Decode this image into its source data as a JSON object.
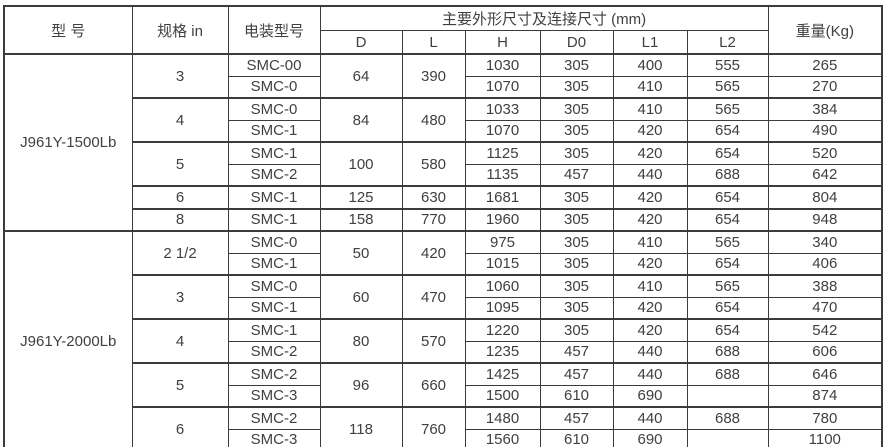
{
  "colors": {
    "border": "#3b3b3b",
    "text": "#404040",
    "background": "#ffffff"
  },
  "table": {
    "header": {
      "model": "型 号",
      "spec": "规格 in",
      "actuator": "电装型号",
      "dims_group": "主要外形尺寸及连接尺寸 (mm)",
      "weight": "重量(Kg)",
      "dims": [
        "D",
        "L",
        "H",
        "D0",
        "L1",
        "L2"
      ]
    },
    "sections": [
      {
        "model": "J961Y-1500Lb",
        "groups": [
          {
            "spec": "3",
            "d": "64",
            "l": "390",
            "rows": [
              {
                "actuator": "SMC-00",
                "h": "1030",
                "d0": "305",
                "l1": "400",
                "l2": "555",
                "weight": "265"
              },
              {
                "actuator": "SMC-0",
                "h": "1070",
                "d0": "305",
                "l1": "410",
                "l2": "565",
                "weight": "270"
              }
            ]
          },
          {
            "spec": "4",
            "d": "84",
            "l": "480",
            "rows": [
              {
                "actuator": "SMC-0",
                "h": "1033",
                "d0": "305",
                "l1": "410",
                "l2": "565",
                "weight": "384"
              },
              {
                "actuator": "SMC-1",
                "h": "1070",
                "d0": "305",
                "l1": "420",
                "l2": "654",
                "weight": "490"
              }
            ]
          },
          {
            "spec": "5",
            "d": "100",
            "l": "580",
            "rows": [
              {
                "actuator": "SMC-1",
                "h": "1125",
                "d0": "305",
                "l1": "420",
                "l2": "654",
                "weight": "520"
              },
              {
                "actuator": "SMC-2",
                "h": "1135",
                "d0": "457",
                "l1": "440",
                "l2": "688",
                "weight": "642"
              }
            ]
          },
          {
            "spec": "6",
            "d": "125",
            "l": "630",
            "rows": [
              {
                "actuator": "SMC-1",
                "h": "1681",
                "d0": "305",
                "l1": "420",
                "l2": "654",
                "weight": "804"
              }
            ]
          },
          {
            "spec": "8",
            "d": "158",
            "l": "770",
            "rows": [
              {
                "actuator": "SMC-1",
                "h": "1960",
                "d0": "305",
                "l1": "420",
                "l2": "654",
                "weight": "948"
              }
            ]
          }
        ]
      },
      {
        "model": "J961Y-2000Lb",
        "groups": [
          {
            "spec": "2 1/2",
            "d": "50",
            "l": "420",
            "rows": [
              {
                "actuator": "SMC-0",
                "h": "975",
                "d0": "305",
                "l1": "410",
                "l2": "565",
                "weight": "340"
              },
              {
                "actuator": "SMC-1",
                "h": "1015",
                "d0": "305",
                "l1": "420",
                "l2": "654",
                "weight": "406"
              }
            ]
          },
          {
            "spec": "3",
            "d": "60",
            "l": "470",
            "rows": [
              {
                "actuator": "SMC-0",
                "h": "1060",
                "d0": "305",
                "l1": "410",
                "l2": "565",
                "weight": "388"
              },
              {
                "actuator": "SMC-1",
                "h": "1095",
                "d0": "305",
                "l1": "420",
                "l2": "654",
                "weight": "470"
              }
            ]
          },
          {
            "spec": "4",
            "d": "80",
            "l": "570",
            "rows": [
              {
                "actuator": "SMC-1",
                "h": "1220",
                "d0": "305",
                "l1": "420",
                "l2": "654",
                "weight": "542"
              },
              {
                "actuator": "SMC-2",
                "h": "1235",
                "d0": "457",
                "l1": "440",
                "l2": "688",
                "weight": "606"
              }
            ]
          },
          {
            "spec": "5",
            "d": "96",
            "l": "660",
            "rows": [
              {
                "actuator": "SMC-2",
                "h": "1425",
                "d0": "457",
                "l1": "440",
                "l2": "688",
                "weight": "646"
              },
              {
                "actuator": "SMC-3",
                "h": "1500",
                "d0": "610",
                "l1": "690",
                "l2": "",
                "weight": "874"
              }
            ]
          },
          {
            "spec": "6",
            "d": "118",
            "l": "760",
            "rows": [
              {
                "actuator": "SMC-2",
                "h": "1480",
                "d0": "457",
                "l1": "440",
                "l2": "688",
                "weight": "780"
              },
              {
                "actuator": "SMC-3",
                "h": "1560",
                "d0": "610",
                "l1": "690",
                "l2": "",
                "weight": "1100"
              }
            ]
          }
        ]
      }
    ]
  }
}
